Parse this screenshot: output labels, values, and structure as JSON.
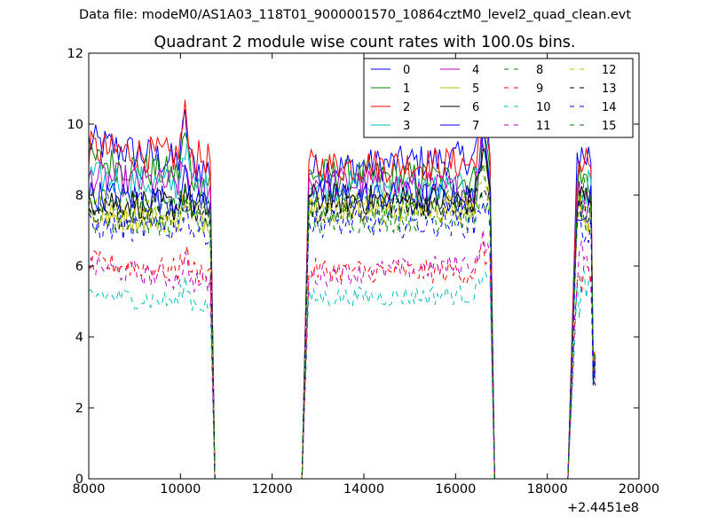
{
  "figure": {
    "suptitle": "Data file: modeM0/AS1A03_118T01_9000001570_10864cztM0_level2_quad_clean.evt"
  },
  "chart_data": {
    "type": "line",
    "title": "Quadrant 2 module wise count rates with 100.0s bins.",
    "xlabel": "",
    "ylabel": "",
    "xlim": [
      8000,
      20000
    ],
    "ylim": [
      0,
      12
    ],
    "x_offset_label": "+2.4451e8",
    "x_ticks": [
      8000,
      10000,
      12000,
      14000,
      16000,
      18000,
      20000
    ],
    "x_tick_labels": [
      "8000",
      "10000",
      "12000",
      "14000",
      "16000",
      "18000",
      "20000"
    ],
    "y_ticks": [
      0,
      2,
      4,
      6,
      8,
      10,
      12
    ],
    "y_tick_labels": [
      "0",
      "2",
      "4",
      "6",
      "8",
      "10",
      "12"
    ],
    "grid": false,
    "legend_position": "upper-right",
    "legend_columns": 4,
    "series": [
      {
        "name": "0",
        "color": "#0000ff",
        "style": "solid",
        "levels": [
          9.5,
          8.7,
          8.7,
          9.1
        ]
      },
      {
        "name": "1",
        "color": "#008000",
        "style": "solid",
        "levels": [
          9.0,
          8.4,
          8.6,
          8.4
        ]
      },
      {
        "name": "2",
        "color": "#ff0000",
        "style": "solid",
        "levels": [
          9.3,
          9.0,
          8.8,
          8.9
        ]
      },
      {
        "name": "3",
        "color": "#00bfbf",
        "style": "solid",
        "levels": [
          8.5,
          8.2,
          8.3,
          8.1
        ]
      },
      {
        "name": "4",
        "color": "#bf00bf",
        "style": "solid",
        "levels": [
          8.5,
          8.2,
          8.4,
          8.1
        ]
      },
      {
        "name": "5",
        "color": "#bfbf00",
        "style": "solid",
        "levels": [
          7.4,
          7.3,
          7.7,
          7.6
        ]
      },
      {
        "name": "6",
        "color": "#000000",
        "style": "solid",
        "levels": [
          7.9,
          7.6,
          7.9,
          7.8
        ]
      },
      {
        "name": "7",
        "color": "#0000ff",
        "style": "solid",
        "levels": [
          8.0,
          7.8,
          8.0,
          7.9
        ]
      },
      {
        "name": "8",
        "color": "#008000",
        "style": "dashed",
        "levels": [
          7.3,
          7.2,
          7.3,
          7.4
        ]
      },
      {
        "name": "9",
        "color": "#ff0000",
        "style": "dashed",
        "levels": [
          6.1,
          5.8,
          5.9,
          5.8
        ]
      },
      {
        "name": "10",
        "color": "#00bfbf",
        "style": "dashed",
        "levels": [
          5.2,
          4.9,
          5.1,
          5.2
        ]
      },
      {
        "name": "11",
        "color": "#bf00bf",
        "style": "dashed",
        "levels": [
          6.0,
          5.5,
          5.7,
          6.1
        ]
      },
      {
        "name": "12",
        "color": "#bfbf00",
        "style": "dashed",
        "levels": [
          7.7,
          7.4,
          7.6,
          7.6
        ]
      },
      {
        "name": "13",
        "color": "#000000",
        "style": "dashed",
        "levels": [
          7.6,
          7.5,
          7.6,
          7.8
        ]
      },
      {
        "name": "14",
        "color": "#0000ff",
        "style": "dashed",
        "levels": [
          7.1,
          7.0,
          7.2,
          7.2
        ]
      },
      {
        "name": "15",
        "color": "#008000",
        "style": "dashed",
        "levels": [
          7.8,
          7.5,
          7.6,
          7.9
        ]
      }
    ],
    "segments": [
      {
        "x_start": 8000,
        "x_end": 10650,
        "peak_at": 10100
      },
      {
        "x_start": 12720,
        "x_end": 16750,
        "peak_at": 16600
      },
      {
        "x_start": 18650,
        "x_end": 19050,
        "peak_at": null
      }
    ],
    "gaps_at_zero": [
      {
        "x_start": 10700,
        "x_end": 12650
      },
      {
        "x_start": 16850,
        "x_end": 18450
      }
    ],
    "notes_visible": []
  }
}
